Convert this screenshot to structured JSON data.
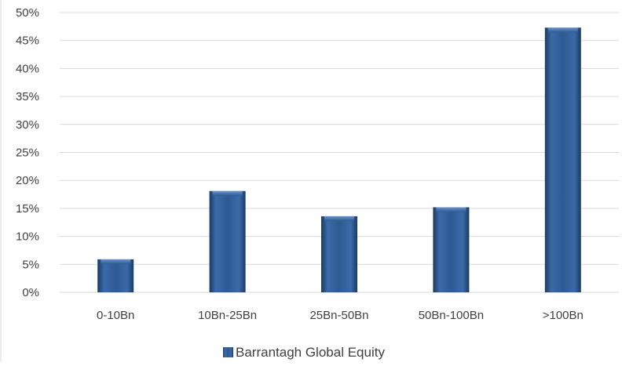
{
  "chart_data": {
    "type": "bar",
    "categories": [
      "0-10Bn",
      "10Bn-25Bn",
      "25Bn-50Bn",
      "50Bn-100Bn",
      ">100Bn"
    ],
    "series": [
      {
        "name": "Barrantagh Global Equity",
        "values": [
          5.9,
          18.1,
          13.6,
          15.2,
          47.3
        ]
      }
    ],
    "ylim": [
      0,
      50
    ],
    "y_ticks": [
      "0%",
      "5%",
      "10%",
      "15%",
      "20%",
      "25%",
      "30%",
      "35%",
      "40%",
      "45%",
      "50%"
    ],
    "grid": true,
    "legend_position": "bottom",
    "colors": {
      "bar": "#2e5a92",
      "bar_dark": "#1b3a63",
      "bar_light": "#5b86c4",
      "grid": "#d9d9d9",
      "text": "#404040"
    }
  }
}
